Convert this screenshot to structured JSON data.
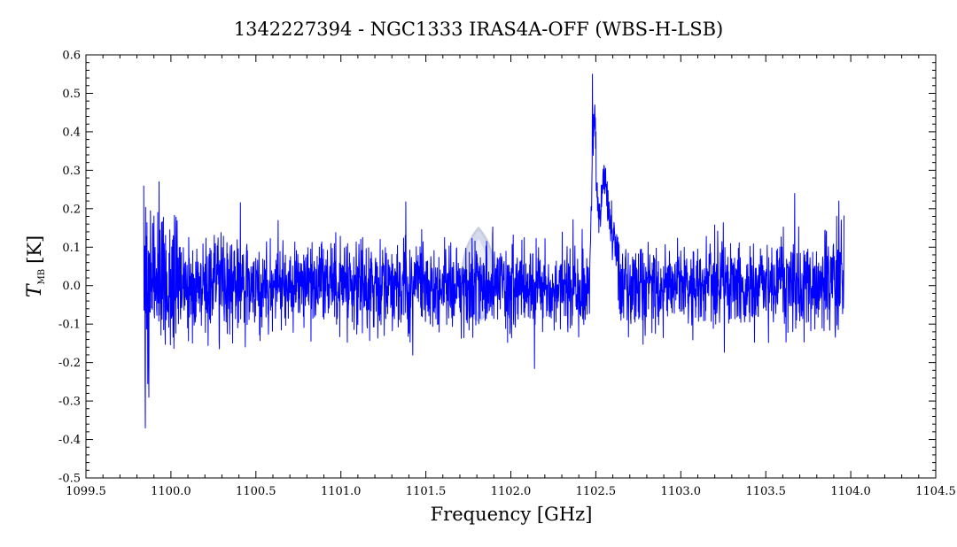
{
  "chart_data": {
    "type": "line",
    "title": "1342227394 - NGC1333 IRAS4A-OFF (WBS-H-LSB)",
    "xlabel": "Frequency [GHz]",
    "ylabel": {
      "symbol": "T",
      "subscript": "MB",
      "unit": "[K]"
    },
    "xlim": [
      1099.5,
      1104.5
    ],
    "ylim": [
      -0.5,
      0.6
    ],
    "xticks": [
      1099.5,
      1100.0,
      1100.5,
      1101.0,
      1101.5,
      1102.0,
      1102.5,
      1103.0,
      1103.5,
      1104.0,
      1104.5
    ],
    "xtick_labels": [
      "1099.5",
      "1100.0",
      "1100.5",
      "1101.0",
      "1101.5",
      "1102.0",
      "1102.5",
      "1103.0",
      "1103.5",
      "1104.0",
      "1104.5"
    ],
    "yticks": [
      -0.5,
      -0.4,
      -0.3,
      -0.2,
      -0.1,
      0.0,
      0.1,
      0.2,
      0.3,
      0.4,
      0.5,
      0.6
    ],
    "ytick_labels": [
      "-0.5",
      "-0.4",
      "-0.3",
      "-0.2",
      "-0.1",
      "0.0",
      "0.1",
      "0.2",
      "0.3",
      "0.4",
      "0.5",
      "0.6"
    ],
    "grid": false,
    "series": [
      {
        "color": "#0000ff",
        "x_range": [
          1099.84,
          1103.96
        ],
        "noise_rms": 0.06,
        "features": [
          {
            "x": 1099.84,
            "y": 0.26
          },
          {
            "x": 1099.85,
            "y": -0.37
          },
          {
            "x": 1099.87,
            "y": -0.29
          },
          {
            "x": 1099.93,
            "y": 0.27
          },
          {
            "x": 1102.48,
            "y": 0.55
          },
          {
            "x": 1102.5,
            "y": 0.4
          },
          {
            "x": 1102.55,
            "y": 0.31
          },
          {
            "x": 1103.67,
            "y": 0.24
          },
          {
            "x": 1103.93,
            "y": 0.22
          }
        ]
      }
    ],
    "watermark": "herschel-logo"
  }
}
